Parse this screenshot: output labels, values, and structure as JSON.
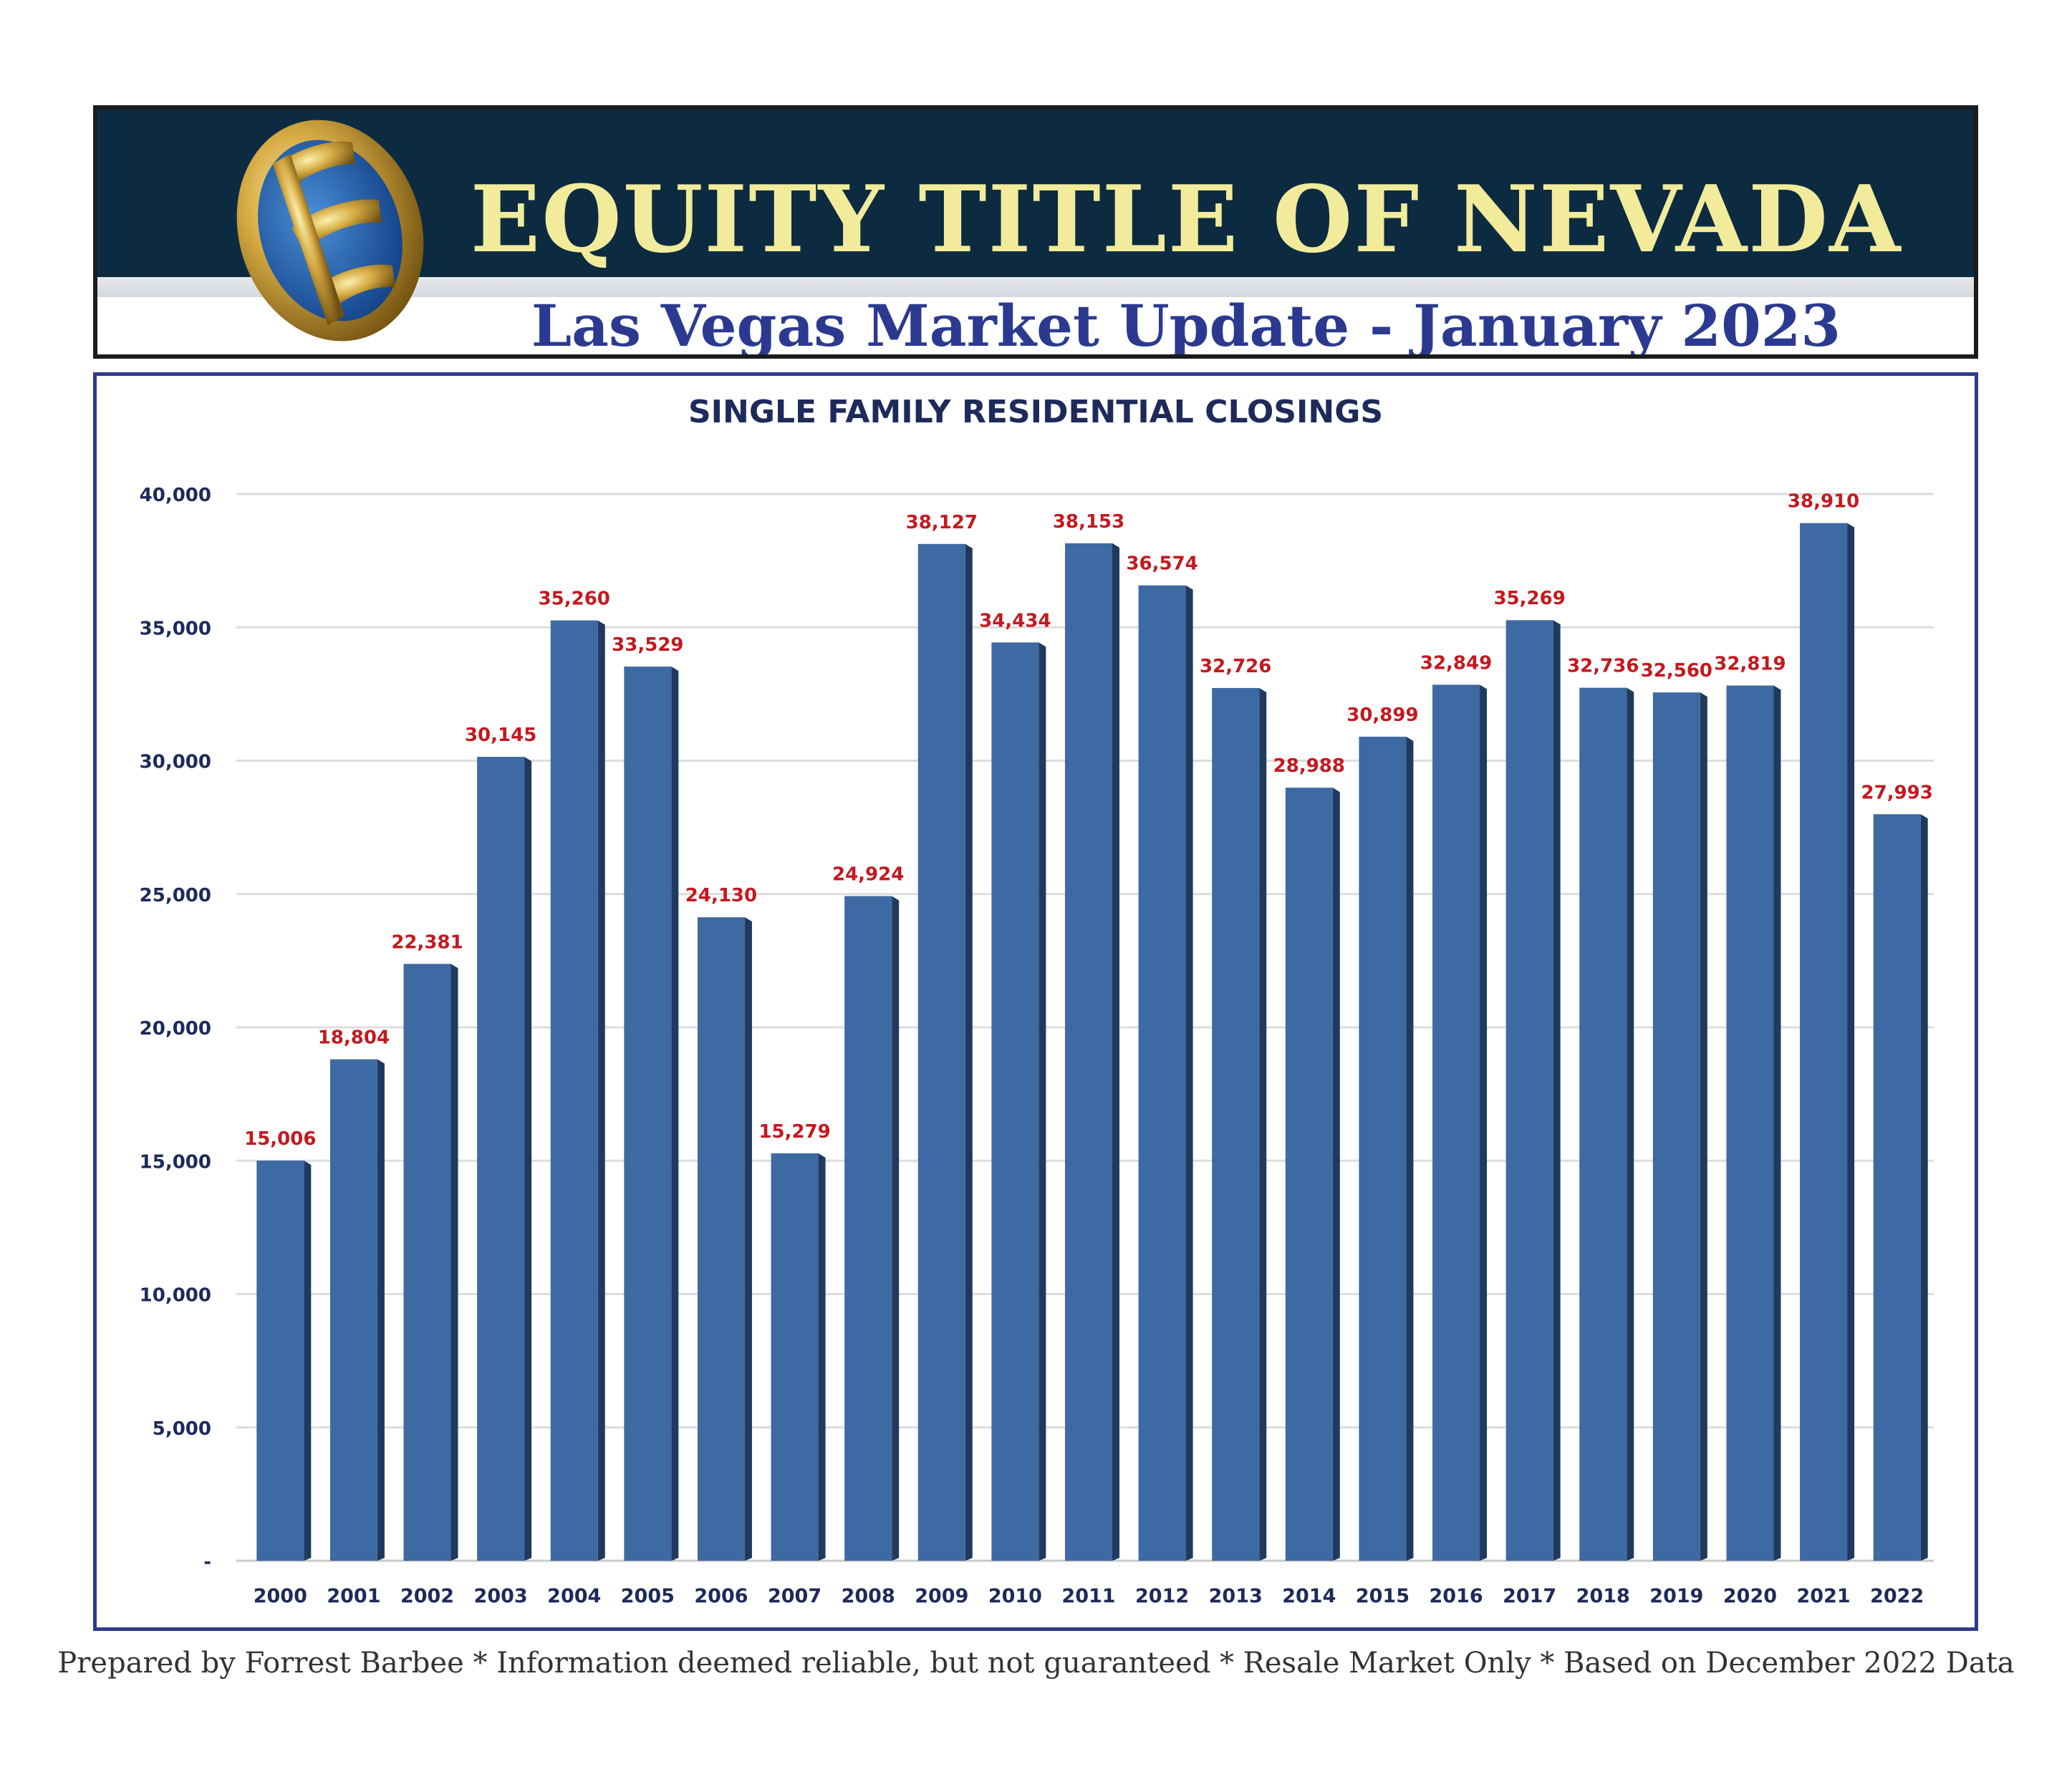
{
  "header": {
    "company": "EQUITY TITLE OF NEVADA",
    "subtitle": "Las Vegas Market Update - January 2023",
    "logo_icon": "gold-ring-e-logo-icon"
  },
  "colors": {
    "header_band": "#0c2b41",
    "company_text": "#f1eb9b",
    "subtitle_text": "#2b3a90",
    "bar": "#3e6aa3",
    "value_label": "#c3191f",
    "axis_text": "#1d2a5a"
  },
  "chart_data": {
    "type": "bar",
    "title": "SINGLE FAMILY RESIDENTIAL CLOSINGS",
    "xlabel": "",
    "ylabel": "",
    "categories": [
      "2000",
      "2001",
      "2002",
      "2003",
      "2004",
      "2005",
      "2006",
      "2007",
      "2008",
      "2009",
      "2010",
      "2011",
      "2012",
      "2013",
      "2014",
      "2015",
      "2016",
      "2017",
      "2018",
      "2019",
      "2020",
      "2021",
      "2022"
    ],
    "values": [
      15006,
      18804,
      22381,
      30145,
      35260,
      33529,
      24130,
      15279,
      24924,
      38127,
      34434,
      38153,
      36574,
      32726,
      28988,
      30899,
      32849,
      35269,
      32736,
      32560,
      32819,
      38910,
      27993
    ],
    "value_labels": [
      "15,006",
      "18,804",
      "22,381",
      "30,145",
      "35,260",
      "33,529",
      "24,130",
      "15,279",
      "24,924",
      "38,127",
      "34,434",
      "38,153",
      "36,574",
      "32,726",
      "28,988",
      "30,899",
      "32,849",
      "35,269",
      "32,736",
      "32,560",
      "32,819",
      "38,910",
      "27,993"
    ],
    "ylim": [
      0,
      40000
    ],
    "yticks": [
      0,
      5000,
      10000,
      15000,
      20000,
      25000,
      30000,
      35000,
      40000
    ],
    "ytick_labels": [
      "-",
      "5,000",
      "10,000",
      "15,000",
      "20,000",
      "25,000",
      "30,000",
      "35,000",
      "40,000"
    ],
    "grid": true,
    "legend": "none"
  },
  "footer": "Prepared by Forrest Barbee * Information deemed reliable, but not guaranteed * Resale Market Only * Based on December 2022 Data"
}
